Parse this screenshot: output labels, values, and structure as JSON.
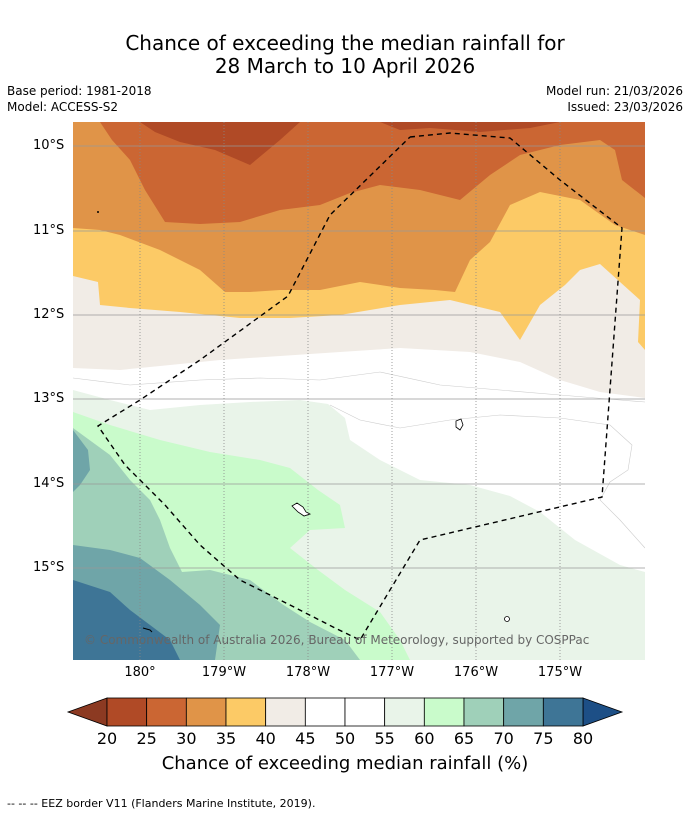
{
  "title": {
    "line1": "Chance of exceeding the median rainfall for",
    "line2": "28 March to 10 April 2026"
  },
  "info": {
    "base_period": "Base period: 1981-2018",
    "model": "Model: ACCESS-S2",
    "model_run": "Model run: 21/03/2026",
    "issued": "Issued: 23/03/2026"
  },
  "axes": {
    "lat_labels": [
      "10°S",
      "11°S",
      "12°S",
      "13°S",
      "14°S",
      "15°S"
    ],
    "lon_labels": [
      "180°",
      "179°W",
      "178°W",
      "177°W",
      "176°W",
      "175°W"
    ]
  },
  "credit": "© Commonwealth of Australia 2026, Bureau of Meteorology, supported by COSPPac",
  "colorbar": {
    "ticks": [
      "20",
      "25",
      "30",
      "35",
      "40",
      "45",
      "50",
      "55",
      "60",
      "65",
      "70",
      "75",
      "80"
    ],
    "colors": [
      "#b04a26",
      "#cb6633",
      "#e09448",
      "#fcca66",
      "#f1ece6",
      "#ffffff",
      "#ffffff",
      "#e9f4e9",
      "#c9fbcb",
      "#9fd0b9",
      "#6fa5a8",
      "#3e7596"
    ],
    "under_color": "#8c3a22",
    "over_color": "#1d4f86",
    "title": "Chance of exceeding median rainfall (%)"
  },
  "footnote": "--  --  -- EEZ border V11 (Flanders Marine Institute, 2019)."
}
